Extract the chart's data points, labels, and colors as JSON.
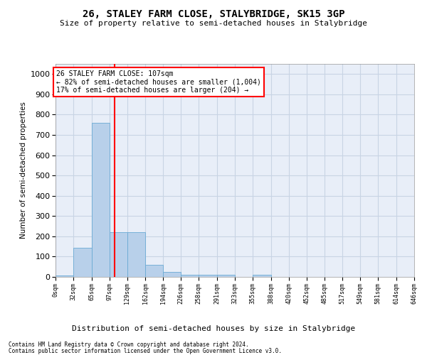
{
  "title": "26, STALEY FARM CLOSE, STALYBRIDGE, SK15 3GP",
  "subtitle": "Size of property relative to semi-detached houses in Stalybridge",
  "xlabel": "Distribution of semi-detached houses by size in Stalybridge",
  "ylabel": "Number of semi-detached properties",
  "annotation_title": "26 STALEY FARM CLOSE: 107sqm",
  "annotation_line1": "← 82% of semi-detached houses are smaller (1,004)",
  "annotation_line2": "17% of semi-detached houses are larger (204) →",
  "property_size": 107,
  "bin_edges": [
    0,
    32,
    65,
    97,
    129,
    162,
    194,
    226,
    258,
    291,
    323,
    355,
    388,
    420,
    452,
    485,
    517,
    549,
    581,
    614,
    646
  ],
  "bin_counts": [
    8,
    145,
    760,
    220,
    220,
    60,
    25,
    12,
    10,
    10,
    0,
    10,
    0,
    0,
    0,
    0,
    0,
    0,
    0,
    0
  ],
  "bar_color": "#b8d0ea",
  "bar_edge_color": "#6aaad4",
  "marker_line_color": "red",
  "grid_color": "#c8d4e4",
  "background_color": "#e8eef8",
  "footer_line1": "Contains HM Land Registry data © Crown copyright and database right 2024.",
  "footer_line2": "Contains public sector information licensed under the Open Government Licence v3.0.",
  "ylim_max": 1050,
  "yticks": [
    0,
    100,
    200,
    300,
    400,
    500,
    600,
    700,
    800,
    900,
    1000
  ]
}
